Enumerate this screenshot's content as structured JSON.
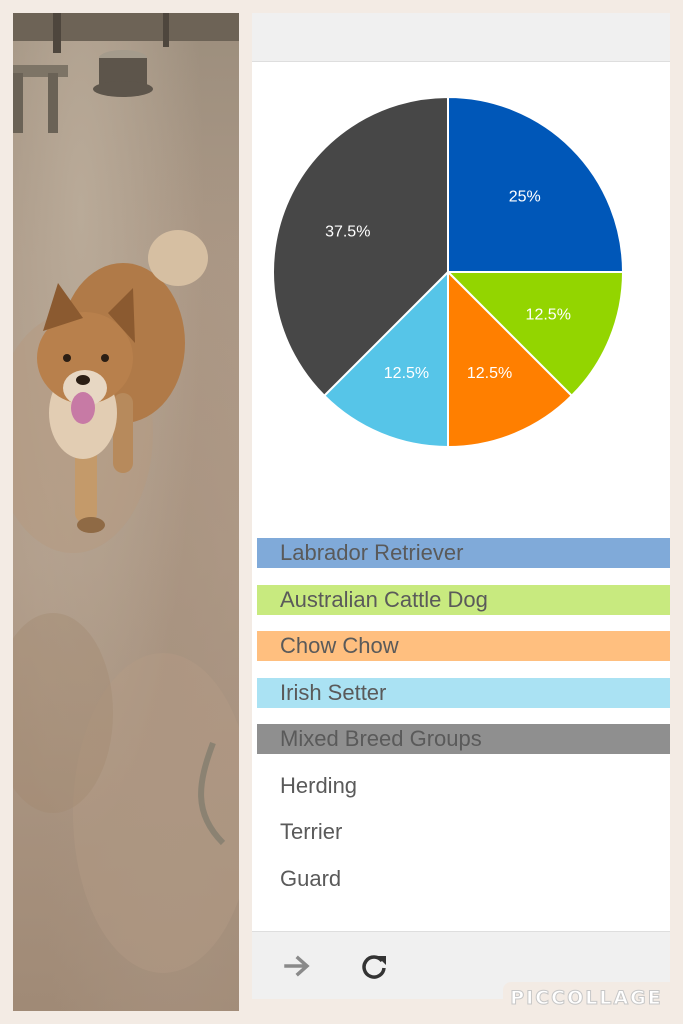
{
  "chart_data": {
    "type": "pie",
    "slices": [
      {
        "value": 25,
        "label": "25%",
        "color": "#0057b8"
      },
      {
        "value": 12.5,
        "label": "12.5%",
        "color": "#93d500"
      },
      {
        "value": 12.5,
        "label": "12.5%",
        "color": "#ff7f00"
      },
      {
        "value": 12.5,
        "label": "12.5%",
        "color": "#56c5e8"
      },
      {
        "value": 37.5,
        "label": "37.5%",
        "color": "#474747"
      }
    ]
  },
  "options": [
    {
      "label": "Labrador Retriever",
      "bg": "#80aad9"
    },
    {
      "label": "Australian Cattle Dog",
      "bg": "#c8ea7f"
    },
    {
      "label": "Chow Chow",
      "bg": "#ffbf7f"
    },
    {
      "label": "Irish Setter",
      "bg": "#aae2f3"
    },
    {
      "label": "Mixed Breed Groups",
      "bg": "#8f8f8f"
    },
    {
      "label": "Herding",
      "bg": ""
    },
    {
      "label": "Terrier",
      "bg": ""
    },
    {
      "label": "Guard",
      "bg": ""
    }
  ],
  "toolbar": {
    "next_icon": "arrow-right-icon",
    "refresh_icon": "refresh-icon"
  },
  "watermark": {
    "text": "PICCOLLAGE"
  }
}
